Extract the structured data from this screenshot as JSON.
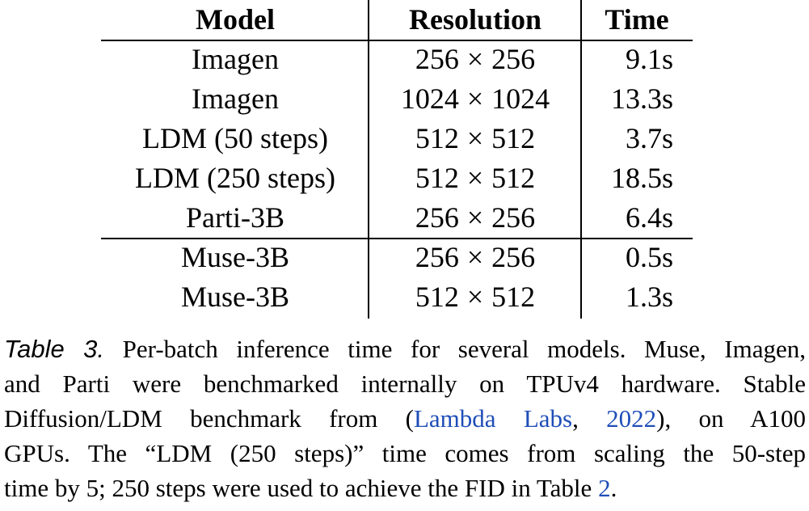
{
  "table": {
    "headers": [
      "Model",
      "Resolution",
      "Time"
    ],
    "rows": [
      {
        "model": "Imagen",
        "res_a": "256",
        "res_b": "256",
        "time": "9.1s"
      },
      {
        "model": "Imagen",
        "res_a": "1024",
        "res_b": "1024",
        "time": "13.3s"
      },
      {
        "model": "LDM (50 steps)",
        "res_a": "512",
        "res_b": "512",
        "time": "3.7s"
      },
      {
        "model": "LDM (250 steps)",
        "res_a": "512",
        "res_b": "512",
        "time": "18.5s"
      },
      {
        "model": "Parti-3B",
        "res_a": "256",
        "res_b": "256",
        "time": "6.4s"
      },
      {
        "model": "Muse-3B",
        "res_a": "256",
        "res_b": "256",
        "time": "0.5s"
      },
      {
        "model": "Muse-3B",
        "res_a": "512",
        "res_b": "512",
        "time": "1.3s"
      }
    ],
    "times_symbol": "×"
  },
  "caption": {
    "label": "Table 3.",
    "line1_rest": " Per-batch inference time for several models. Muse, Imagen,",
    "line2": "and Parti were benchmarked internally on TPUv4 hardware. Stable",
    "line3_pre": "Diffusion/LDM benchmark from (",
    "cite_name": "Lambda Labs",
    "cite_sep": ", ",
    "cite_year": "2022",
    "line3_post": "), on A100",
    "line4": "GPUs. The “LDM (250 steps)” time comes from scaling the 50-step",
    "line5_pre": "time by 5; 250 steps were used to achieve the FID in Table ",
    "table_ref": "2",
    "line5_post": "."
  },
  "colors": {
    "text": "#000000",
    "link": "#1f4eb8",
    "background": "#ffffff"
  }
}
